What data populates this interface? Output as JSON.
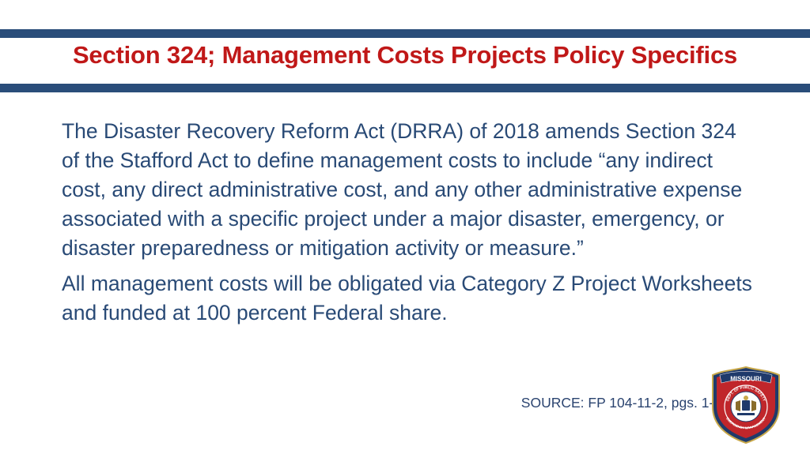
{
  "slide": {
    "title": "Section 324; Management Costs Projects Policy Specifics",
    "paragraphs": [
      "The Disaster Recovery Reform Act (DRRA) of 2018 amends Section 324 of the Stafford Act to define management costs to include “any indirect cost, any direct administrative cost, and any other administrative expense associated with a specific project under a major disaster, emergency, or disaster preparedness or mitigation activity or measure.”",
      "All management costs will be obligated via Category Z Project Worksheets and funded at 100 percent Federal share."
    ],
    "source": "SOURCE: FP 104-11-2, pgs. 1-3"
  },
  "seal": {
    "top_text": "MISSOURI",
    "ring_text": "DEPT. OF PUBLIC SAFETY",
    "bottom_text": "EMERGENCY MANAGEMENT"
  },
  "colors": {
    "title": "#c01818",
    "body": "#294a76",
    "bars": "#2a4d7a"
  }
}
